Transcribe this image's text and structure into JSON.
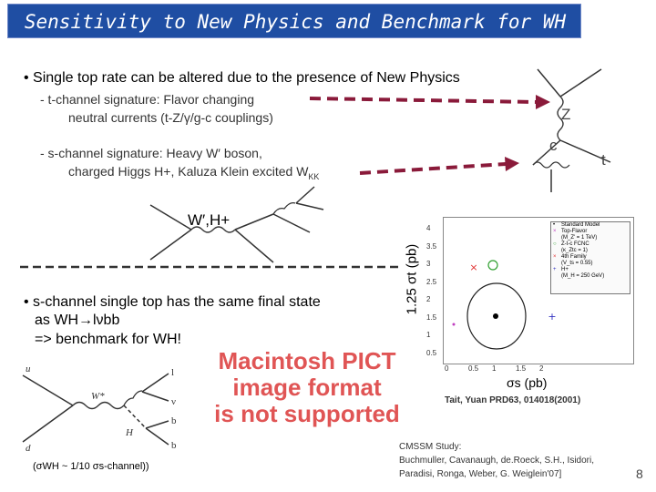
{
  "slide": {
    "title": "Sensitivity to New Physics and Benchmark for WH",
    "page_number": "8"
  },
  "bullets": {
    "main": "• Single top rate can be altered due to the presence of New Physics",
    "t_channel_line1": "- t-channel signature: Flavor changing",
    "t_channel_line2": "neutral currents (t-Z/γ/g-c couplings)",
    "s_channel_line1": "- s-channel signature: Heavy W′ boson,",
    "s_channel_line2": "charged Higgs H+, Kaluza Klein excited W",
    "s_channel_kk": "KK",
    "wh_line1": "• s-channel single top has the same final state",
    "wh_line2": "as WH→lνbb",
    "wh_line3": "=> benchmark for WH!"
  },
  "diagram_labels": {
    "z": "Z",
    "c": "c",
    "t": "t",
    "wprime_h": "W′,H+",
    "sigma_wh": "(σWH ~ 1/10 σs-channel))"
  },
  "plot": {
    "ylabel": "1.25 σt (pb)",
    "xlabel": "σs (pb)",
    "y_ticks": [
      "4",
      "3.5",
      "3",
      "2.5",
      "2",
      "1.5",
      "1",
      "0.5"
    ],
    "x_ticks": [
      "0",
      "0.5",
      "1",
      "1.5",
      "2"
    ],
    "legend": [
      {
        "label": "Standard Model",
        "marker": "•",
        "color": "#000000"
      },
      {
        "label": "Top-Flavor",
        "marker": "×",
        "color": "#c040c0"
      },
      {
        "label": "(M_Z' = 1 TeV)",
        "marker": "",
        "color": "#000000"
      },
      {
        "label": "Z-t-c FCNC",
        "marker": "○",
        "color": "#30a030"
      },
      {
        "label": "(κ_Ztc = 1)",
        "marker": "",
        "color": "#000000"
      },
      {
        "label": "4th Family",
        "marker": "×",
        "color": "#e03030"
      },
      {
        "label": "(V_ts = 0.55)",
        "marker": "",
        "color": "#000000"
      },
      {
        "label": "H+",
        "marker": "+",
        "color": "#3030c0"
      },
      {
        "label": "(M_H = 250 GeV)",
        "marker": "",
        "color": "#000000"
      }
    ],
    "citation": "Tait, Yuan PRD63, 014018(2001)"
  },
  "pict_warning": [
    "Macintosh PICT",
    "image format",
    "is not supported"
  ],
  "cmssm": {
    "line1": "CMSSM Study:",
    "line2": "Buchmuller, Cavanaugh, de.Roeck, S.H., Isidori,",
    "line3": "Paradisi, Ronga, Weber, G. Weiglein'07]"
  },
  "colors": {
    "title_bg": "#1f4ea3",
    "arrow": "#8a1a3a",
    "pict_text": "#e05555"
  }
}
